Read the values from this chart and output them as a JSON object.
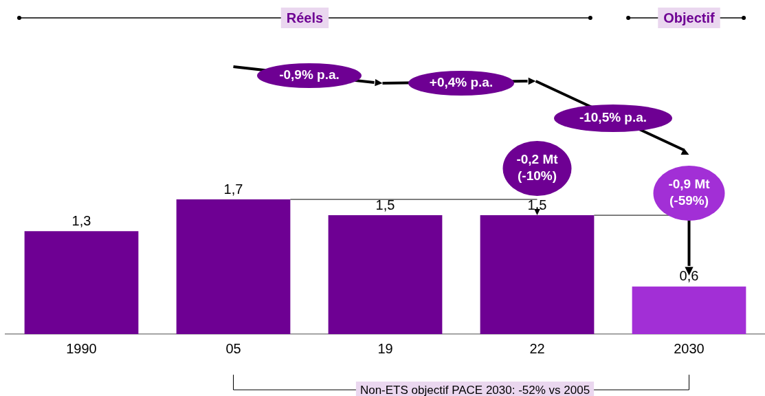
{
  "chart_data": {
    "type": "bar",
    "categories": [
      "1990",
      "05",
      "19",
      "22",
      "2030"
    ],
    "values": [
      1.3,
      1.7,
      1.5,
      1.5,
      0.6
    ],
    "colors": [
      "#6e0093",
      "#6e0093",
      "#6e0093",
      "#6e0093",
      "#a22fd6"
    ],
    "value_labels": [
      "1,3",
      "1,7",
      "1,5",
      "1,5",
      "0,6"
    ],
    "annotations": [
      "Réels",
      "Objectif",
      "-0,9% p.a.",
      "+0,4% p.a.",
      "-10,5% p.a.",
      "-0,2 Mt\n(-10%)",
      "-0,9 Mt\n(-59%)",
      "Non-ETS objectif PACE 2030: -52% vs 2005"
    ],
    "grid": false,
    "legend": false
  }
}
